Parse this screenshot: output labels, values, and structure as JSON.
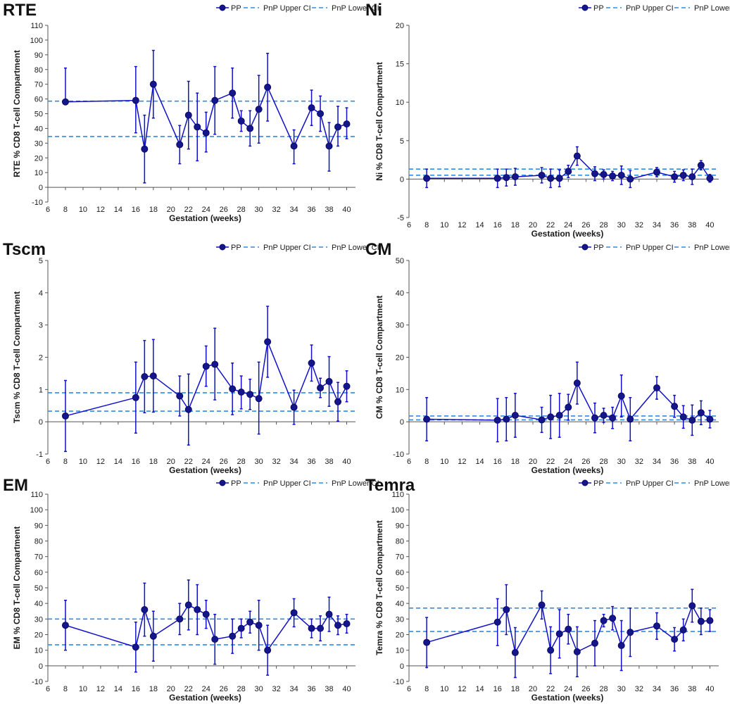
{
  "figure": {
    "x_values": [
      8,
      16,
      17,
      18,
      21,
      22,
      23,
      24,
      25,
      27,
      28,
      29,
      30,
      31,
      34,
      36,
      37,
      38,
      39,
      40
    ],
    "x_ticks": [
      6,
      8,
      10,
      12,
      14,
      16,
      18,
      20,
      22,
      24,
      26,
      28,
      30,
      32,
      34,
      36,
      38,
      40
    ],
    "legend": {
      "pp": "PP",
      "upper": "PnP Upper CI",
      "lower": "PnP Lower CI"
    },
    "colors": {
      "series": "#1010c8",
      "marker_fill": "#15158c",
      "marker_stroke": "#0a0a66",
      "ci": "#2e8ce6",
      "axis": "#555555"
    }
  },
  "chart_data": [
    {
      "type": "line",
      "title": "RTE",
      "xlabel": "Gestation (weeks)",
      "ylabel": "RTE % CD8 T-cell Compartment",
      "ylim": [
        -10,
        110
      ],
      "yticks": [
        -10,
        0,
        10,
        20,
        30,
        40,
        50,
        60,
        70,
        80,
        90,
        100,
        110
      ],
      "xlim": [
        6,
        41
      ],
      "series": [
        {
          "name": "PP",
          "values": [
            58,
            59,
            26,
            70,
            29,
            49,
            41,
            37,
            59,
            64,
            45,
            40,
            53,
            68,
            28,
            54,
            50,
            28,
            41,
            43
          ],
          "err_high": [
            81,
            82,
            49,
            93,
            42,
            72,
            64,
            51,
            82,
            81,
            52,
            52,
            76,
            91,
            39,
            66,
            62,
            44,
            55,
            54
          ],
          "err_low": [
            58,
            37,
            3,
            47,
            16,
            26,
            18,
            24,
            36,
            47,
            38,
            28,
            30,
            45,
            16,
            42,
            38,
            11,
            28,
            33
          ]
        }
      ],
      "ci_upper": 58.5,
      "ci_lower": 34.5
    },
    {
      "type": "line",
      "title": "Ni",
      "xlabel": "Gestation (weeks)",
      "ylabel": "Ni % CD8 T-cell Compartment",
      "ylim": [
        -5,
        20
      ],
      "yticks": [
        -5,
        0,
        5,
        10,
        15,
        20
      ],
      "xlim": [
        6,
        41
      ],
      "series": [
        {
          "name": "PP",
          "values": [
            0.1,
            0.1,
            0.2,
            0.3,
            0.5,
            0.1,
            0.1,
            1.0,
            3.0,
            0.7,
            0.6,
            0.4,
            0.5,
            0.0,
            0.9,
            0.3,
            0.5,
            0.3,
            1.8,
            0.1
          ],
          "err_high": [
            1.3,
            1.3,
            1.3,
            1.4,
            1.5,
            1.3,
            1.2,
            1.8,
            4.2,
            1.6,
            1.2,
            1.0,
            1.7,
            1.1,
            1.5,
            1.0,
            1.2,
            1.3,
            2.4,
            0.6
          ],
          "err_low": [
            -1.1,
            -1.1,
            -0.9,
            -0.8,
            -0.5,
            -1.1,
            -1.0,
            0.2,
            1.8,
            -0.2,
            0.0,
            -0.2,
            -0.7,
            -1.1,
            0.3,
            -0.4,
            -0.2,
            -0.7,
            1.2,
            -0.4
          ]
        }
      ],
      "ci_upper": 1.3,
      "ci_lower": 0.5
    },
    {
      "type": "line",
      "title": "Tscm",
      "xlabel": "Gestation (weeks)",
      "ylabel": "Tscm % CD8 T-cell Compartment",
      "ylim": [
        -1,
        5
      ],
      "yticks": [
        -1,
        0,
        1,
        2,
        3,
        4,
        5
      ],
      "xlim": [
        6,
        41
      ],
      "series": [
        {
          "name": "PP",
          "values": [
            0.18,
            0.75,
            1.4,
            1.42,
            0.8,
            0.38,
            1.72,
            1.78,
            1.02,
            0.92,
            0.85,
            0.72,
            2.48,
            0.45,
            1.82,
            1.05,
            1.25,
            0.62,
            1.1
          ],
          "x": [
            8,
            16,
            17,
            18,
            21,
            22,
            24,
            25,
            27,
            28,
            29,
            30,
            31,
            34,
            36,
            37,
            38,
            39,
            40
          ],
          "err_high": [
            1.28,
            1.85,
            2.52,
            2.55,
            1.42,
            1.48,
            2.35,
            2.9,
            1.82,
            1.42,
            1.32,
            1.85,
            3.58,
            0.98,
            2.38,
            1.35,
            2.02,
            1.22,
            1.58
          ],
          "err_low": [
            -0.92,
            -0.35,
            0.28,
            0.3,
            0.18,
            -0.72,
            1.1,
            0.68,
            0.22,
            0.4,
            0.38,
            -0.38,
            1.38,
            -0.08,
            1.26,
            0.75,
            0.48,
            0.02,
            0.62
          ]
        }
      ],
      "ci_upper": 0.9,
      "ci_lower": 0.33
    },
    {
      "type": "line",
      "title": "CM",
      "xlabel": "Gestation (weeks)",
      "ylabel": "CM % CD8 T-cell Compartment",
      "ylim": [
        -10,
        50
      ],
      "yticks": [
        -10,
        0,
        10,
        20,
        30,
        40,
        50
      ],
      "xlim": [
        6,
        41
      ],
      "series": [
        {
          "name": "PP",
          "values": [
            0.8,
            0.5,
            0.8,
            2.0,
            0.6,
            1.5,
            2.0,
            4.5,
            12.0,
            1.2,
            2.0,
            1.2,
            8.0,
            0.8,
            10.5,
            4.8,
            1.5,
            0.5,
            2.8,
            0.8
          ],
          "err_high": [
            7.5,
            7.2,
            7.5,
            8.8,
            4.5,
            8.2,
            8.8,
            8.5,
            18.5,
            5.8,
            4.2,
            4.5,
            14.5,
            7.5,
            14.0,
            8.2,
            5.0,
            5.2,
            6.5,
            3.5
          ],
          "err_low": [
            -5.9,
            -6.2,
            -5.9,
            -4.8,
            -3.3,
            -5.2,
            -4.8,
            0.5,
            5.5,
            -3.4,
            -0.2,
            -2.1,
            1.5,
            -5.9,
            7.0,
            1.4,
            -2.0,
            -4.2,
            -0.9,
            -1.9
          ]
        }
      ],
      "ci_upper": 1.8,
      "ci_lower": 0.6
    },
    {
      "type": "line",
      "title": "EM",
      "xlabel": "Gestation (weeks)",
      "ylabel": "EM % CD8 T-cell Compartment",
      "ylim": [
        -10,
        110
      ],
      "yticks": [
        -10,
        0,
        10,
        20,
        30,
        40,
        50,
        60,
        70,
        80,
        90,
        100,
        110
      ],
      "xlim": [
        6,
        41
      ],
      "series": [
        {
          "name": "PP",
          "values": [
            26,
            12,
            36,
            19,
            30,
            39,
            36,
            33,
            17,
            19,
            24,
            28,
            26,
            10,
            34,
            24,
            24,
            33,
            26,
            27
          ],
          "err_high": [
            42,
            28,
            53,
            35,
            40,
            55,
            52,
            42,
            33,
            30,
            30,
            35,
            42,
            26,
            43,
            30,
            32,
            44,
            32,
            33
          ],
          "err_low": [
            10,
            -4,
            19,
            3,
            20,
            23,
            20,
            24,
            1,
            8,
            18,
            21,
            10,
            -6,
            25,
            18,
            16,
            22,
            20,
            21
          ]
        }
      ],
      "ci_upper": 30,
      "ci_lower": 13.5
    },
    {
      "type": "line",
      "title": "Temra",
      "xlabel": "Gestation (weeks)",
      "ylabel": "Temra % CD8 T-cell Compartment",
      "ylim": [
        -10,
        110
      ],
      "yticks": [
        -10,
        0,
        10,
        20,
        30,
        40,
        50,
        60,
        70,
        80,
        90,
        100,
        110
      ],
      "xlim": [
        6,
        41
      ],
      "series": [
        {
          "name": "PP",
          "values": [
            15,
            28,
            36,
            8.5,
            39,
            10,
            20.5,
            23.5,
            9,
            14.5,
            29,
            30.5,
            13,
            21.5,
            25.5,
            17,
            23,
            38.5,
            28.5,
            29
          ],
          "err_high": [
            31,
            43,
            52,
            24.5,
            48,
            25,
            36,
            33,
            25,
            29,
            33,
            38,
            29,
            37,
            34,
            24.5,
            30,
            49,
            37,
            36
          ],
          "err_low": [
            -1,
            13,
            20,
            -7.5,
            30,
            -5,
            5,
            14,
            -7,
            0,
            25,
            23,
            -3,
            6,
            17,
            9.5,
            16,
            28,
            20,
            22
          ]
        }
      ],
      "ci_upper": 37,
      "ci_lower": 22
    }
  ]
}
